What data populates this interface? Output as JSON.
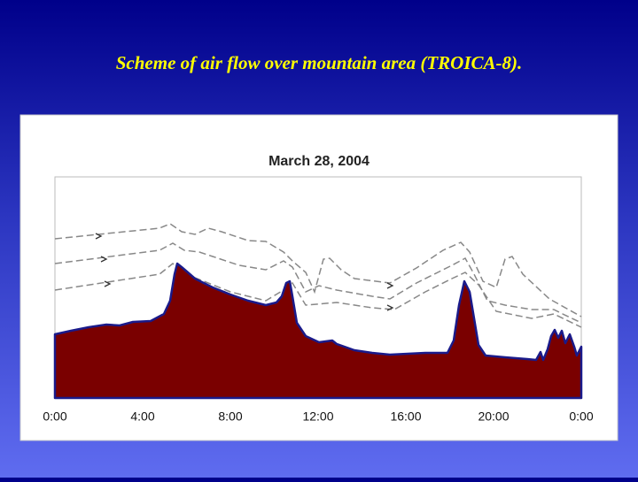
{
  "slide_title": "Scheme of air flow over mountain area (TROICA-8).",
  "chart": {
    "title": "March 28, 2004",
    "x_labels": [
      "0:00",
      "4:00",
      "8:00",
      "12:00",
      "16:00",
      "20:00",
      "0:00"
    ]
  }
}
